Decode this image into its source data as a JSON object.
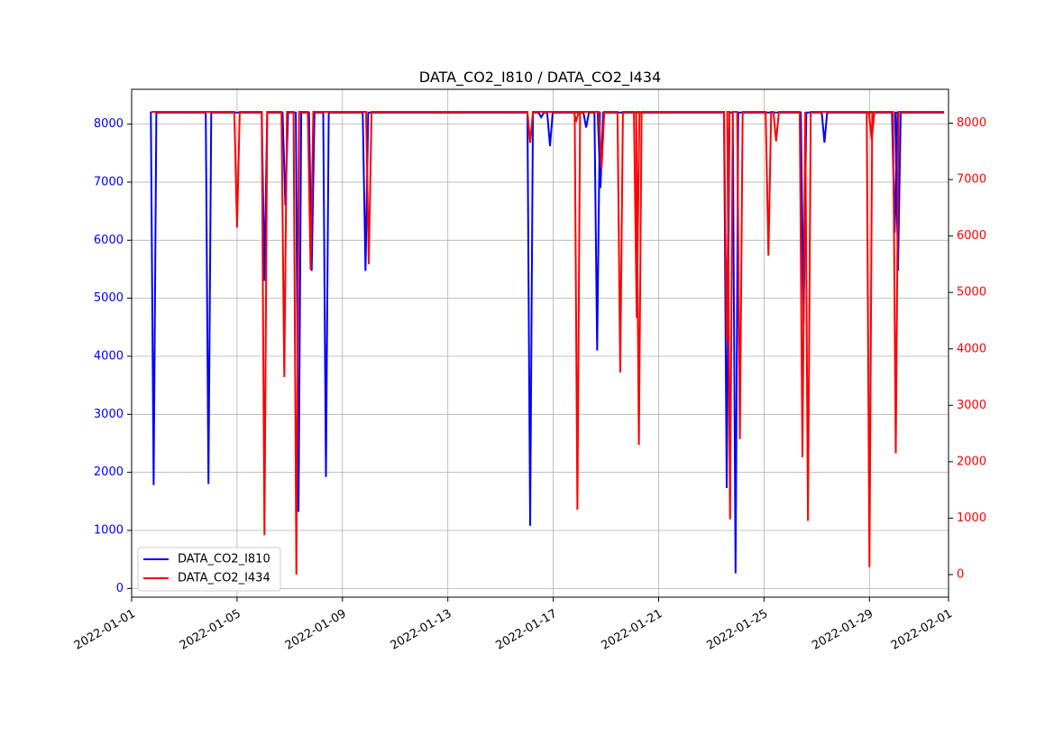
{
  "chart_data": {
    "type": "line",
    "title": "DATA_CO2_I810 / DATA_CO2_I434",
    "xlabel": "",
    "ylabel_left": "",
    "ylabel_right": "",
    "xlim": [
      "2022-01-01T00:00",
      "2022-02-01T00:00"
    ],
    "x_ticks": [
      "2022-01-01",
      "2022-01-05",
      "2022-01-09",
      "2022-01-13",
      "2022-01-17",
      "2022-01-21",
      "2022-01-25",
      "2022-01-29",
      "2022-02-01"
    ],
    "ylim_left": [
      -150,
      8600
    ],
    "ylim_right": [
      -400,
      8600
    ],
    "y_ticks_left": [
      0,
      1000,
      2000,
      3000,
      4000,
      5000,
      6000,
      7000,
      8000
    ],
    "y_ticks_right": [
      0,
      1000,
      2000,
      3000,
      4000,
      5000,
      6000,
      7000,
      8000
    ],
    "grid": true,
    "legend_position": "lower-left",
    "left_axis_color": "#0000ff",
    "right_axis_color": "#ff0000",
    "series": [
      {
        "name": "DATA_CO2_I810",
        "axis": "left",
        "color": "#0000ff",
        "baseline": 8200,
        "start": "2022-01-01T18:00",
        "end": "2022-01-31T20:00",
        "dips": [
          {
            "x": "2022-01-01T20:00",
            "y": 1780
          },
          {
            "x": "2022-01-03T22:00",
            "y": 1800
          },
          {
            "x": "2022-01-06T01:00",
            "y": 5300
          },
          {
            "x": "2022-01-06T20:00",
            "y": 6600
          },
          {
            "x": "2022-01-07T08:00",
            "y": 1320
          },
          {
            "x": "2022-01-07T20:00",
            "y": 5470
          },
          {
            "x": "2022-01-08T09:00",
            "y": 1920
          },
          {
            "x": "2022-01-09T21:00",
            "y": 5470
          },
          {
            "x": "2022-01-16T03:00",
            "y": 1080
          },
          {
            "x": "2022-01-16T13:00",
            "y": 8120
          },
          {
            "x": "2022-01-16T21:00",
            "y": 7620
          },
          {
            "x": "2022-01-18T06:00",
            "y": 7940
          },
          {
            "x": "2022-01-18T16:00",
            "y": 4100
          },
          {
            "x": "2022-01-18T19:00",
            "y": 6900
          },
          {
            "x": "2022-01-23T14:00",
            "y": 1730
          },
          {
            "x": "2022-01-23T22:00",
            "y": 260
          },
          {
            "x": "2022-01-26T12:00",
            "y": 4550
          },
          {
            "x": "2022-01-27T07:00",
            "y": 7680
          },
          {
            "x": "2022-01-29T23:00",
            "y": 6130
          },
          {
            "x": "2022-01-30T02:00",
            "y": 5470
          }
        ]
      },
      {
        "name": "DATA_CO2_I434",
        "axis": "right",
        "color": "#ff0000",
        "baseline": 8200,
        "start": "2022-01-01T18:00",
        "end": "2022-01-31T20:00",
        "dips": [
          {
            "x": "2022-01-05T00:00",
            "y": 6150
          },
          {
            "x": "2022-01-06T01:00",
            "y": 700
          },
          {
            "x": "2022-01-06T19:00",
            "y": 3500
          },
          {
            "x": "2022-01-07T06:00",
            "y": 0
          },
          {
            "x": "2022-01-07T19:00",
            "y": 5400
          },
          {
            "x": "2022-01-10T00:00",
            "y": 5500
          },
          {
            "x": "2022-01-16T03:00",
            "y": 7650
          },
          {
            "x": "2022-01-17T21:00",
            "y": 8050
          },
          {
            "x": "2022-01-17T22:00",
            "y": 1150
          },
          {
            "x": "2022-01-18T20:00",
            "y": 7200
          },
          {
            "x": "2022-01-19T13:00",
            "y": 3580
          },
          {
            "x": "2022-01-20T04:00",
            "y": 4550
          },
          {
            "x": "2022-01-20T06:00",
            "y": 2300
          },
          {
            "x": "2022-01-23T14:00",
            "y": 4150
          },
          {
            "x": "2022-01-23T17:00",
            "y": 980
          },
          {
            "x": "2022-01-24T02:00",
            "y": 2400
          },
          {
            "x": "2022-01-25T04:00",
            "y": 5650
          },
          {
            "x": "2022-01-25T11:00",
            "y": 7680
          },
          {
            "x": "2022-01-26T11:00",
            "y": 2080
          },
          {
            "x": "2022-01-26T16:00",
            "y": 950
          },
          {
            "x": "2022-01-29T00:00",
            "y": 130
          },
          {
            "x": "2022-01-29T02:00",
            "y": 7700
          },
          {
            "x": "2022-01-30T00:00",
            "y": 2150
          }
        ]
      }
    ]
  }
}
